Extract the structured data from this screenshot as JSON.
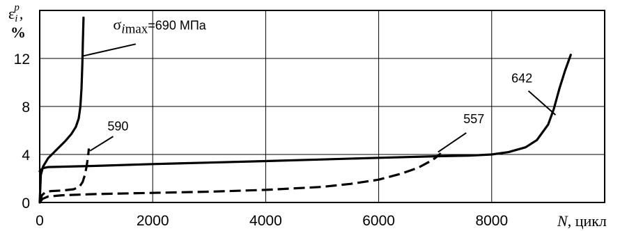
{
  "chart_data": {
    "type": "line",
    "xlabel": "N, цикл",
    "ylabel_symbol": "ε",
    "ylabel_sub": "i",
    "ylabel_sup": "p",
    "ylabel_comma": ",",
    "ylabel_unit": "%",
    "xlim": [
      0,
      10000
    ],
    "ylim": [
      0,
      16
    ],
    "x_ticks": [
      0,
      2000,
      4000,
      6000,
      8000
    ],
    "y_ticks": [
      0,
      4,
      8,
      12
    ],
    "grid": true,
    "series": [
      {
        "name": "690",
        "label_prefix": "σ",
        "label_sub": "i",
        "label_subtext": "max",
        "label_suffix": "=690 МПа",
        "style": "solid",
        "points": [
          [
            0,
            0
          ],
          [
            20,
            2.3
          ],
          [
            60,
            3.0
          ],
          [
            150,
            3.7
          ],
          [
            300,
            4.4
          ],
          [
            450,
            5.1
          ],
          [
            560,
            5.7
          ],
          [
            640,
            6.3
          ],
          [
            690,
            7.0
          ],
          [
            720,
            8.0
          ],
          [
            740,
            9.5
          ],
          [
            755,
            11.5
          ],
          [
            765,
            13.5
          ],
          [
            775,
            15.4
          ]
        ]
      },
      {
        "name": "642",
        "label": "642",
        "style": "solid",
        "points": [
          [
            0,
            2.6
          ],
          [
            50,
            2.85
          ],
          [
            150,
            2.95
          ],
          [
            1000,
            3.05
          ],
          [
            2000,
            3.2
          ],
          [
            3000,
            3.32
          ],
          [
            4000,
            3.45
          ],
          [
            5000,
            3.58
          ],
          [
            6000,
            3.72
          ],
          [
            7000,
            3.85
          ],
          [
            7600,
            3.9
          ],
          [
            8000,
            4.0
          ],
          [
            8300,
            4.2
          ],
          [
            8600,
            4.6
          ],
          [
            8800,
            5.2
          ],
          [
            9000,
            6.5
          ],
          [
            9100,
            7.8
          ],
          [
            9200,
            9.5
          ],
          [
            9300,
            11.0
          ],
          [
            9400,
            12.3
          ]
        ]
      },
      {
        "name": "590",
        "label": "590",
        "style": "dashed",
        "points": [
          [
            0,
            0
          ],
          [
            40,
            0.6
          ],
          [
            100,
            0.85
          ],
          [
            200,
            0.95
          ],
          [
            400,
            1.0
          ],
          [
            600,
            1.1
          ],
          [
            700,
            1.3
          ],
          [
            760,
            1.7
          ],
          [
            800,
            2.3
          ],
          [
            830,
            3.0
          ],
          [
            855,
            3.8
          ],
          [
            870,
            4.5
          ]
        ]
      },
      {
        "name": "557",
        "label": "557",
        "style": "dashed",
        "points": [
          [
            0,
            0
          ],
          [
            50,
            0.3
          ],
          [
            150,
            0.5
          ],
          [
            400,
            0.6
          ],
          [
            1000,
            0.7
          ],
          [
            2000,
            0.8
          ],
          [
            3000,
            0.9
          ],
          [
            4000,
            1.05
          ],
          [
            5000,
            1.3
          ],
          [
            5500,
            1.55
          ],
          [
            6000,
            1.9
          ],
          [
            6400,
            2.4
          ],
          [
            6700,
            2.9
          ],
          [
            6900,
            3.4
          ],
          [
            7000,
            3.7
          ],
          [
            7100,
            4.1
          ]
        ]
      }
    ],
    "annotations": [
      {
        "series": "690",
        "text_x": 1300,
        "text_y": 14.4,
        "lead_from": [
          1700,
          13.2
        ],
        "lead_to": [
          762,
          12.2
        ]
      },
      {
        "series": "590",
        "text_x": 1200,
        "text_y": 6.0,
        "lead_from": [
          1300,
          5.5
        ],
        "lead_to": [
          890,
          4.3
        ]
      },
      {
        "series": "557",
        "text_x": 7500,
        "text_y": 6.6,
        "lead_from": [
          7550,
          5.8
        ],
        "lead_to": [
          7050,
          4.2
        ]
      },
      {
        "series": "642",
        "text_x": 8350,
        "text_y": 10.0,
        "lead_from": [
          8650,
          9.3
        ],
        "lead_to": [
          9130,
          7.3
        ]
      }
    ]
  }
}
